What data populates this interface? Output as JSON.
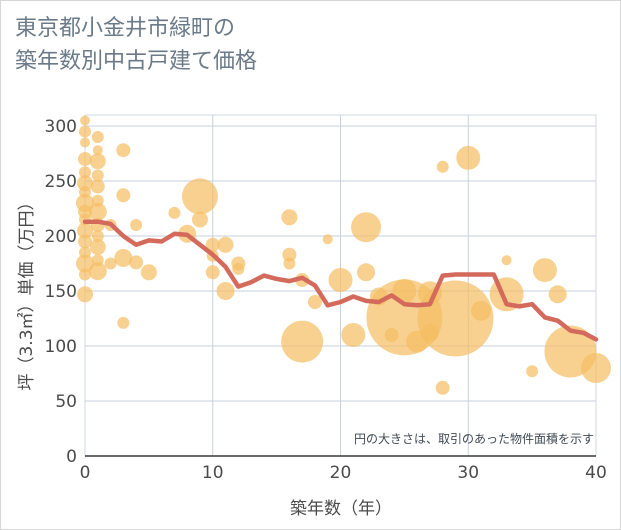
{
  "chart_data": {
    "type": "scatter",
    "title_lines": [
      "東京都小金井市緑町の",
      "築年数別中古戸建て価格"
    ],
    "xlabel": "築年数（年）",
    "ylabel": "坪（3.3㎡）単価（万円）",
    "xlim": [
      0,
      40
    ],
    "ylim": [
      0,
      310
    ],
    "xticks": [
      0,
      10,
      20,
      30,
      40
    ],
    "yticks": [
      0,
      50,
      100,
      150,
      200,
      250,
      300
    ],
    "note": "円の大きさは、取引のあった物件面積を示す",
    "bubble_color": "#f5be62",
    "line_color": "#d46a5b",
    "bubbles": [
      {
        "x": 0,
        "y": 305,
        "s": 5
      },
      {
        "x": 0,
        "y": 295,
        "s": 6
      },
      {
        "x": 0,
        "y": 285,
        "s": 5
      },
      {
        "x": 0,
        "y": 270,
        "s": 7
      },
      {
        "x": 0,
        "y": 258,
        "s": 6
      },
      {
        "x": 0,
        "y": 248,
        "s": 8
      },
      {
        "x": 0,
        "y": 240,
        "s": 6
      },
      {
        "x": 0,
        "y": 230,
        "s": 9
      },
      {
        "x": 0,
        "y": 222,
        "s": 7
      },
      {
        "x": 0,
        "y": 215,
        "s": 6
      },
      {
        "x": 0,
        "y": 205,
        "s": 8
      },
      {
        "x": 0,
        "y": 195,
        "s": 7
      },
      {
        "x": 0,
        "y": 185,
        "s": 6
      },
      {
        "x": 0,
        "y": 175,
        "s": 9
      },
      {
        "x": 0,
        "y": 165,
        "s": 6
      },
      {
        "x": 0,
        "y": 147,
        "s": 8
      },
      {
        "x": 1,
        "y": 290,
        "s": 6
      },
      {
        "x": 1,
        "y": 278,
        "s": 5
      },
      {
        "x": 1,
        "y": 268,
        "s": 8
      },
      {
        "x": 1,
        "y": 255,
        "s": 6
      },
      {
        "x": 1,
        "y": 245,
        "s": 7
      },
      {
        "x": 1,
        "y": 232,
        "s": 6
      },
      {
        "x": 1,
        "y": 222,
        "s": 9
      },
      {
        "x": 1,
        "y": 210,
        "s": 7
      },
      {
        "x": 1,
        "y": 200,
        "s": 6
      },
      {
        "x": 1,
        "y": 190,
        "s": 8
      },
      {
        "x": 1,
        "y": 178,
        "s": 6
      },
      {
        "x": 1,
        "y": 168,
        "s": 9
      },
      {
        "x": 2,
        "y": 210,
        "s": 6
      },
      {
        "x": 2,
        "y": 175,
        "s": 6
      },
      {
        "x": 3,
        "y": 278,
        "s": 7
      },
      {
        "x": 3,
        "y": 237,
        "s": 7
      },
      {
        "x": 3,
        "y": 180,
        "s": 9
      },
      {
        "x": 3,
        "y": 121,
        "s": 6
      },
      {
        "x": 4,
        "y": 210,
        "s": 6
      },
      {
        "x": 4,
        "y": 176,
        "s": 7
      },
      {
        "x": 5,
        "y": 167,
        "s": 8
      },
      {
        "x": 7,
        "y": 221,
        "s": 6
      },
      {
        "x": 8,
        "y": 202,
        "s": 9
      },
      {
        "x": 9,
        "y": 236,
        "s": 18
      },
      {
        "x": 9,
        "y": 215,
        "s": 8
      },
      {
        "x": 10,
        "y": 192,
        "s": 7
      },
      {
        "x": 10,
        "y": 182,
        "s": 6
      },
      {
        "x": 10,
        "y": 167,
        "s": 7
      },
      {
        "x": 11,
        "y": 192,
        "s": 8
      },
      {
        "x": 11,
        "y": 150,
        "s": 9
      },
      {
        "x": 12,
        "y": 175,
        "s": 7
      },
      {
        "x": 12,
        "y": 170,
        "s": 6
      },
      {
        "x": 16,
        "y": 217,
        "s": 8
      },
      {
        "x": 16,
        "y": 183,
        "s": 7
      },
      {
        "x": 16,
        "y": 175,
        "s": 6
      },
      {
        "x": 17,
        "y": 160,
        "s": 7
      },
      {
        "x": 17,
        "y": 104,
        "s": 21
      },
      {
        "x": 18,
        "y": 140,
        "s": 7
      },
      {
        "x": 19,
        "y": 197,
        "s": 5
      },
      {
        "x": 20,
        "y": 160,
        "s": 12
      },
      {
        "x": 21,
        "y": 110,
        "s": 12
      },
      {
        "x": 22,
        "y": 208,
        "s": 15
      },
      {
        "x": 22,
        "y": 167,
        "s": 9
      },
      {
        "x": 23,
        "y": 145,
        "s": 9
      },
      {
        "x": 24,
        "y": 110,
        "s": 7
      },
      {
        "x": 25,
        "y": 150,
        "s": 12
      },
      {
        "x": 25,
        "y": 126,
        "s": 38
      },
      {
        "x": 26,
        "y": 104,
        "s": 11
      },
      {
        "x": 27,
        "y": 148,
        "s": 12
      },
      {
        "x": 27,
        "y": 112,
        "s": 9
      },
      {
        "x": 28,
        "y": 263,
        "s": 6
      },
      {
        "x": 28,
        "y": 62,
        "s": 7
      },
      {
        "x": 29,
        "y": 125,
        "s": 38
      },
      {
        "x": 30,
        "y": 271,
        "s": 12
      },
      {
        "x": 31,
        "y": 132,
        "s": 10
      },
      {
        "x": 33,
        "y": 178,
        "s": 5
      },
      {
        "x": 33,
        "y": 147,
        "s": 17
      },
      {
        "x": 35,
        "y": 77,
        "s": 6
      },
      {
        "x": 36,
        "y": 169,
        "s": 12
      },
      {
        "x": 37,
        "y": 147,
        "s": 9
      },
      {
        "x": 38,
        "y": 95,
        "s": 26
      },
      {
        "x": 40,
        "y": 80,
        "s": 15
      }
    ],
    "line": {
      "x": [
        0,
        1,
        2,
        3,
        4,
        5,
        6,
        7,
        8,
        9,
        10,
        11,
        12,
        13,
        14,
        15,
        16,
        17,
        18,
        19,
        20,
        21,
        22,
        23,
        24,
        25,
        26,
        27,
        28,
        29,
        30,
        31,
        32,
        33,
        34,
        35,
        36,
        37,
        38,
        39,
        40
      ],
      "y": [
        213,
        213,
        211,
        200,
        192,
        196,
        195,
        202,
        201,
        192,
        183,
        172,
        154,
        158,
        164,
        161,
        159,
        162,
        155,
        137,
        140,
        145,
        141,
        140,
        146,
        138,
        137,
        138,
        164,
        165,
        165,
        165,
        165,
        138,
        136,
        138,
        126,
        123,
        114,
        112,
        106
      ]
    }
  }
}
